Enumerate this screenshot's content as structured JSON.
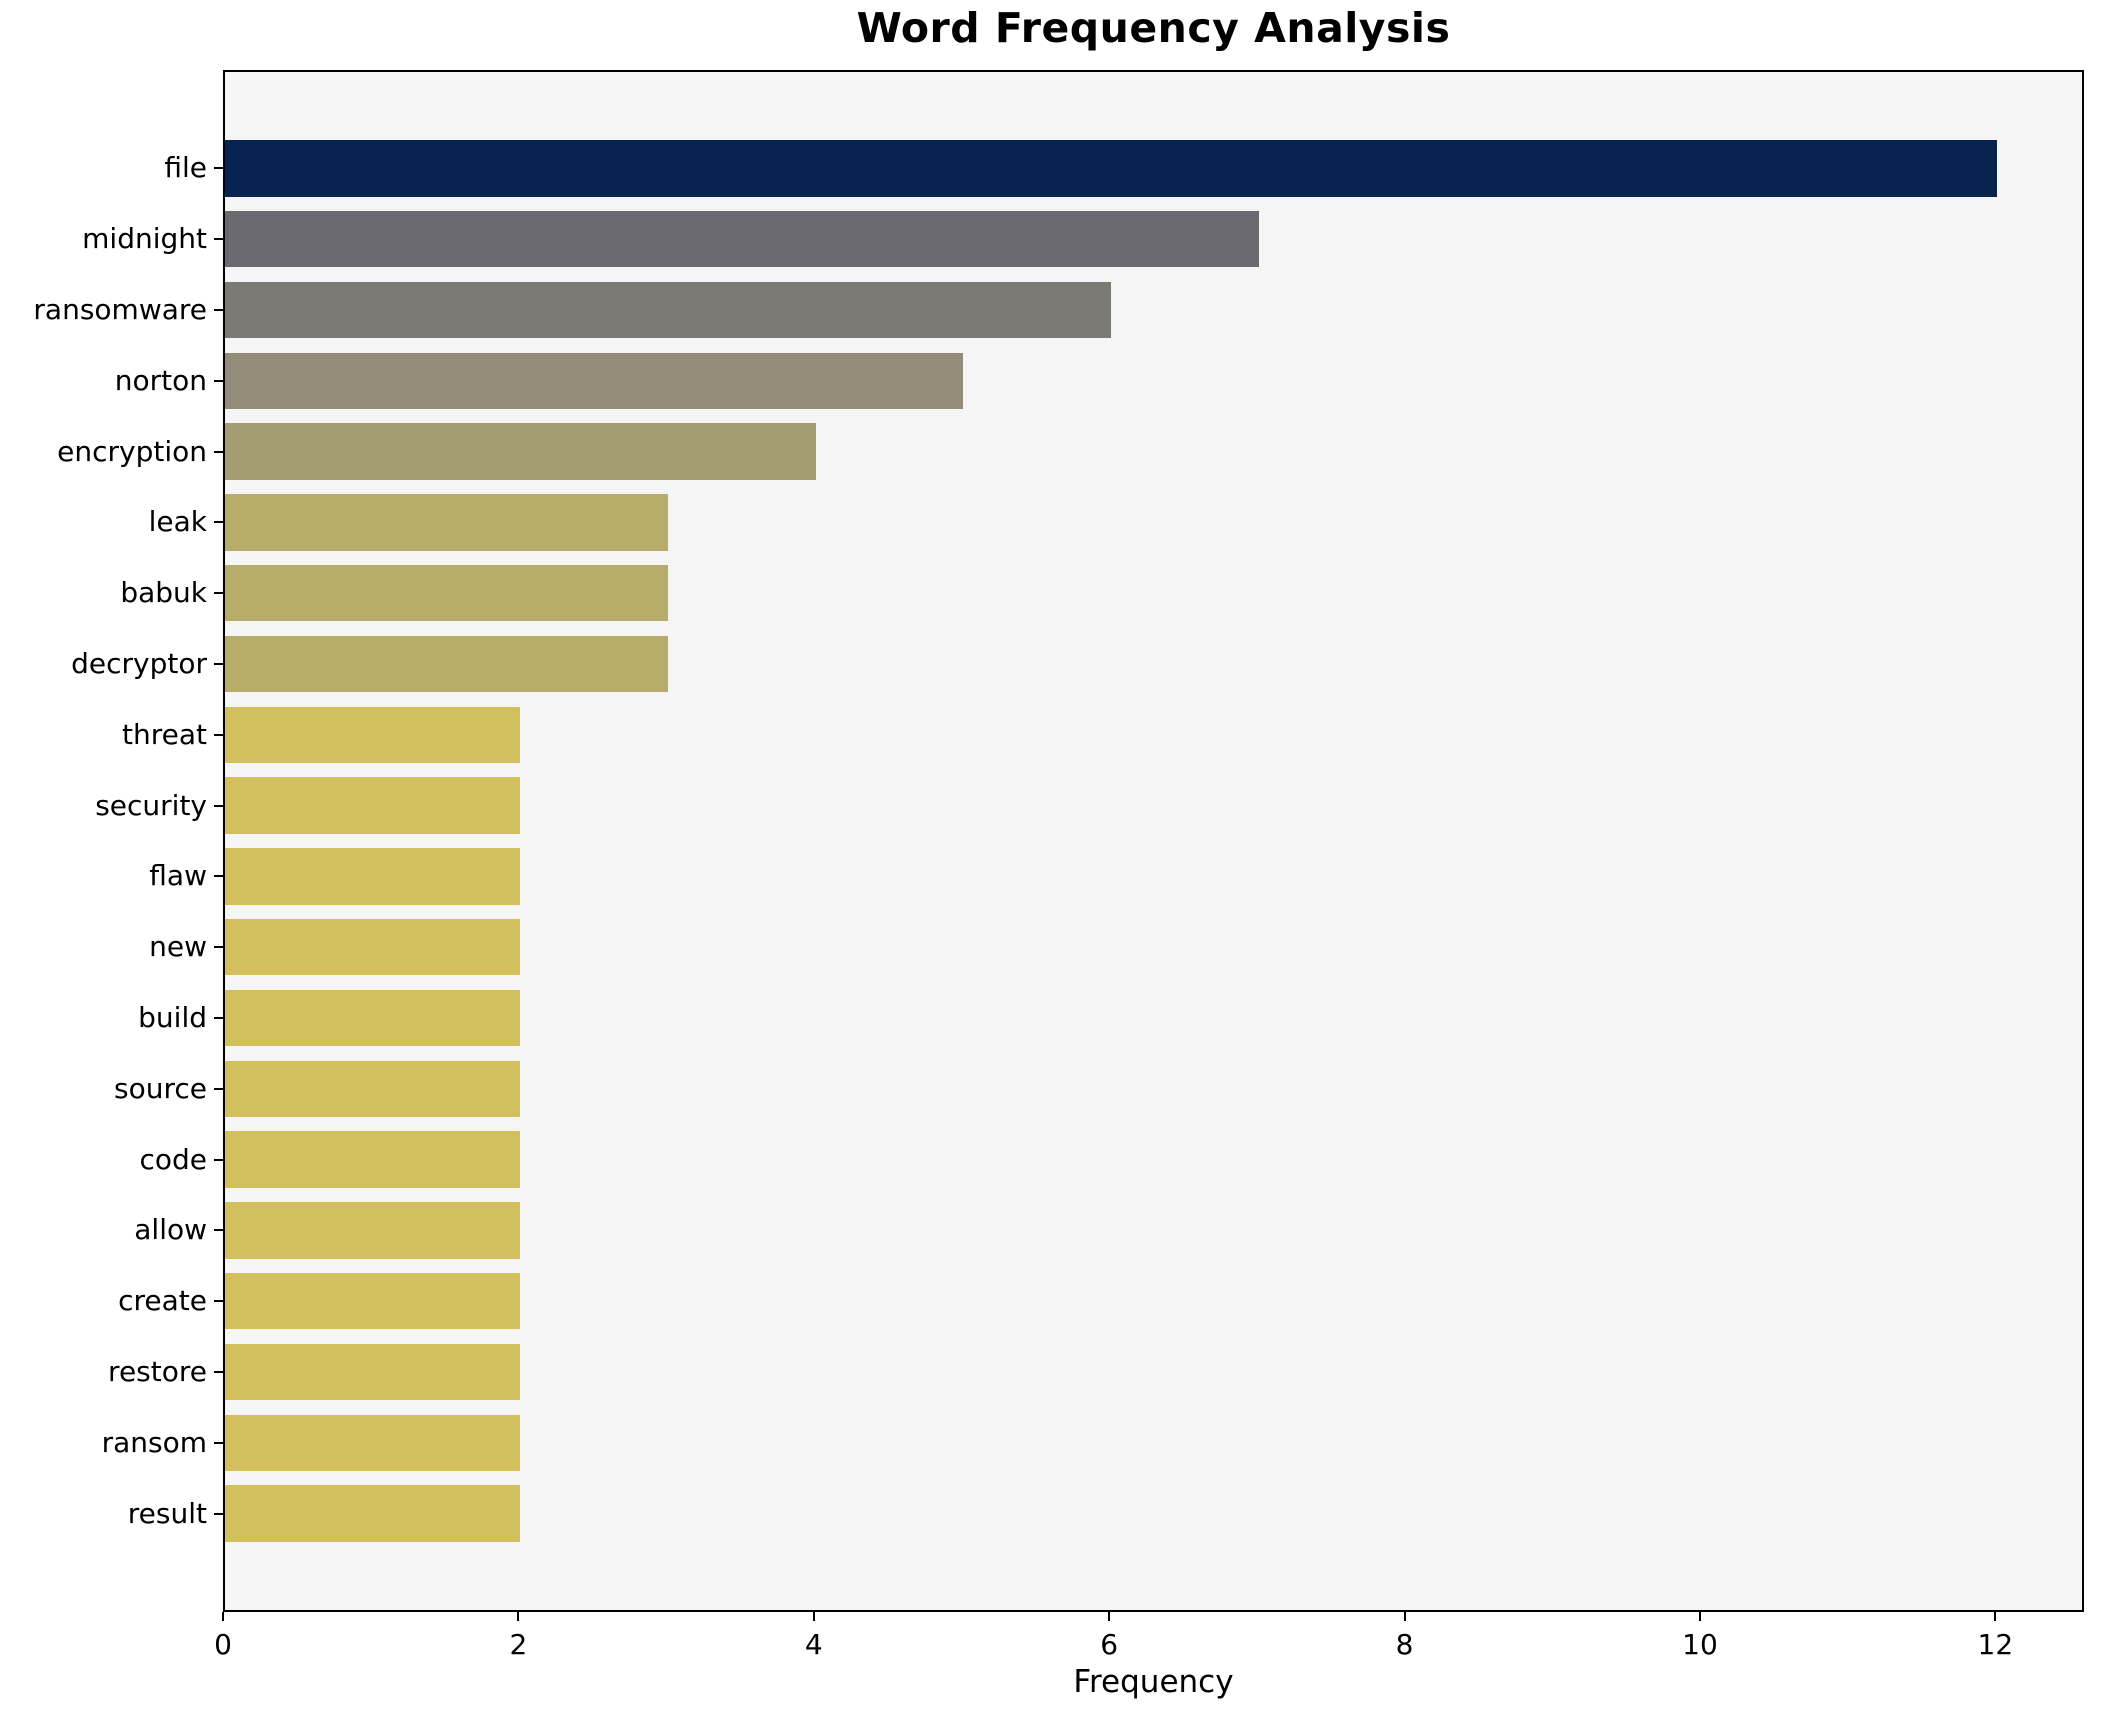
{
  "chart_data": {
    "type": "bar",
    "orientation": "horizontal",
    "title": "Word Frequency Analysis",
    "xlabel": "Frequency",
    "ylabel": "",
    "categories": [
      "file",
      "midnight",
      "ransomware",
      "norton",
      "encryption",
      "leak",
      "babuk",
      "decryptor",
      "threat",
      "security",
      "flaw",
      "new",
      "build",
      "source",
      "code",
      "allow",
      "create",
      "restore",
      "ransom",
      "result"
    ],
    "values": [
      12,
      7,
      6,
      5,
      4,
      3,
      3,
      3,
      2,
      2,
      2,
      2,
      2,
      2,
      2,
      2,
      2,
      2,
      2,
      2
    ],
    "bar_colors": [
      "#082350",
      "#6b6a70",
      "#7b7a74",
      "#928c78",
      "#a49d72",
      "#b8ac6a",
      "#b8ac6a",
      "#b8ac6a",
      "#d2c05e",
      "#d2c05e",
      "#d2c05e",
      "#d2c05e",
      "#d2c05e",
      "#d2c05e",
      "#d2c05e",
      "#d2c05e",
      "#d2c05e",
      "#d2c05e",
      "#d2c05e",
      "#d2c05e"
    ],
    "xticks": [
      0,
      2,
      4,
      6,
      8,
      10,
      12
    ],
    "xlim": [
      0,
      12.6
    ],
    "grid": false,
    "legend": false,
    "plot_background": "#f5f5f6",
    "figure_background": "#ffffff",
    "spine_color": "#000000",
    "text_color": "#000000"
  }
}
